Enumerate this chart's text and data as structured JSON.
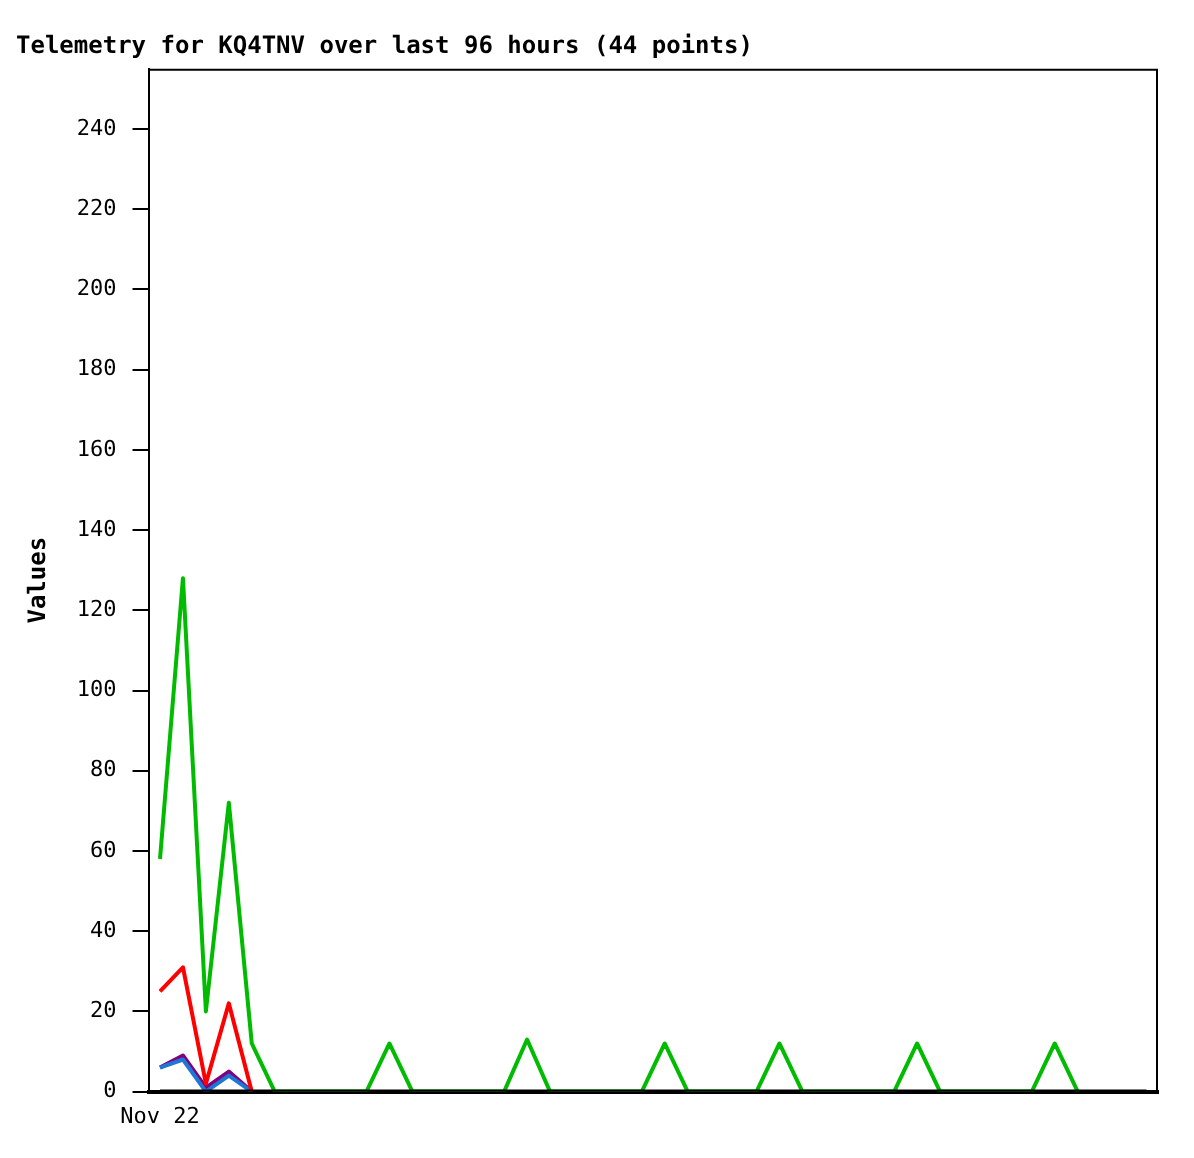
{
  "chart_data": {
    "type": "line",
    "title": "Telemetry for KQ4TNV over last 96 hours (44 points)",
    "ylabel": "Values",
    "categories": [
      "Nov 22",
      null,
      null,
      null,
      null,
      null,
      null,
      null,
      null,
      null,
      null,
      null,
      null,
      null,
      null,
      null,
      null,
      null,
      null,
      null,
      null,
      null,
      null,
      null,
      null,
      null,
      null,
      null,
      null,
      null,
      null,
      null,
      null,
      null,
      null,
      null,
      null,
      null,
      null,
      null,
      null,
      null,
      null,
      null
    ],
    "series": [
      {
        "color": "#000000",
        "values": [
          0,
          0,
          0,
          0,
          0,
          0,
          0,
          0,
          0,
          0,
          0,
          0,
          0,
          0,
          0,
          0,
          0,
          0,
          0,
          0,
          0,
          0,
          0,
          0,
          0,
          0,
          0,
          0,
          0,
          0,
          0,
          0,
          0,
          0,
          0,
          0,
          0,
          0,
          0,
          0,
          0,
          0,
          0,
          0
        ]
      },
      {
        "color": "#00bb00",
        "values": [
          58,
          128,
          20,
          72,
          12,
          0,
          0,
          0,
          0,
          0,
          12,
          0,
          0,
          0,
          0,
          0,
          13,
          0,
          0,
          0,
          0,
          0,
          12,
          0,
          0,
          0,
          0,
          12,
          0,
          0,
          0,
          0,
          0,
          12,
          0,
          0,
          0,
          0,
          0,
          12,
          0,
          null,
          null,
          null
        ]
      },
      {
        "color": "#ff0000",
        "values": [
          25,
          31,
          2,
          22,
          0,
          null,
          null,
          null,
          null,
          null,
          null,
          null,
          null,
          null,
          null,
          null,
          null,
          null,
          null,
          null,
          null,
          null,
          null,
          null,
          null,
          null,
          null,
          null,
          null,
          null,
          null,
          null,
          null,
          null,
          null,
          null,
          null,
          null,
          null,
          null,
          null,
          null,
          null,
          null
        ]
      },
      {
        "color": "#1f77d4",
        "values": [
          6,
          8,
          0,
          4,
          0,
          null,
          null,
          null,
          null,
          null,
          null,
          null,
          null,
          null,
          null,
          null,
          null,
          null,
          null,
          null,
          null,
          null,
          null,
          null,
          null,
          null,
          null,
          null,
          null,
          null,
          null,
          null,
          null,
          null,
          null,
          null,
          null,
          null,
          null,
          null,
          null,
          null,
          null,
          null
        ]
      },
      {
        "color": "#800080",
        "values": [
          6,
          9,
          1,
          5,
          0,
          null,
          null,
          null,
          null,
          null,
          null,
          null,
          null,
          null,
          null,
          null,
          null,
          null,
          null,
          null,
          null,
          null,
          null,
          null,
          null,
          null,
          null,
          null,
          null,
          null,
          null,
          null,
          null,
          null,
          null,
          null,
          null,
          null,
          null,
          null,
          null,
          null,
          null,
          null
        ]
      }
    ],
    "ylim": [
      0,
      255
    ],
    "yticks": [
      0,
      20,
      40,
      60,
      80,
      100,
      120,
      140,
      160,
      180,
      200,
      220,
      240
    ],
    "grid": false,
    "legend": false,
    "marker": "none",
    "line_style": "solid"
  }
}
